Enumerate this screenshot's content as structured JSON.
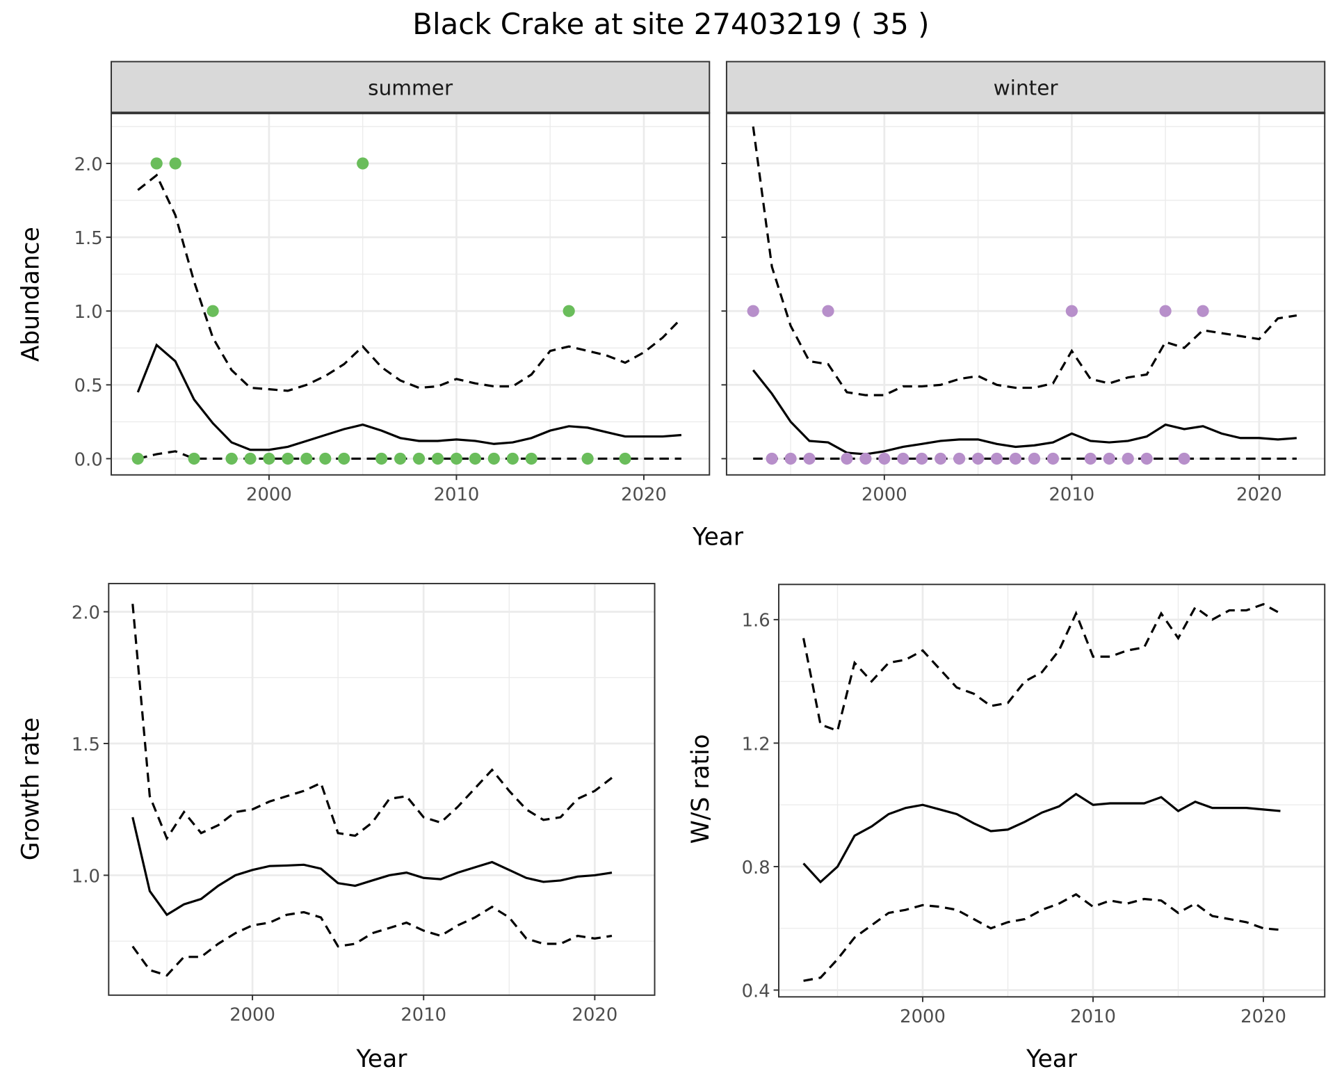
{
  "title": "Black Crake at site 27403219 ( 35 )",
  "colors": {
    "summer": "#6abd5b",
    "winter": "#b78fca",
    "line": "#000000",
    "strip_bg": "#d9d9d9",
    "grid": "#ebebeb"
  },
  "chart_data": [
    {
      "type": "line",
      "panel": "summer",
      "strip_label": "summer",
      "xlabel": "Year",
      "ylabel": "Abundance",
      "xlim": [
        1991.58,
        2023.5
      ],
      "ylim": [
        -0.11,
        2.342
      ],
      "xticks": [
        2000,
        2010,
        2020
      ],
      "xtick_labels": [
        "2000",
        "2010",
        "2020"
      ],
      "yticks": [
        0,
        0.5,
        1,
        1.5,
        2
      ],
      "ytick_labels": [
        "0.0",
        "0.5",
        "1.0",
        "1.5",
        "2.0"
      ],
      "x": [
        1993,
        1994,
        1995,
        1996,
        1997,
        1998,
        1999,
        2000,
        2001,
        2002,
        2003,
        2004,
        2005,
        2006,
        2007,
        2008,
        2009,
        2010,
        2011,
        2012,
        2013,
        2014,
        2015,
        2016,
        2017,
        2018,
        2019,
        2020,
        2021,
        2022
      ],
      "series": [
        {
          "name": "mean",
          "style": "solid",
          "values": [
            0.45,
            0.77,
            0.66,
            0.4,
            0.24,
            0.11,
            0.06,
            0.06,
            0.08,
            0.12,
            0.16,
            0.2,
            0.23,
            0.19,
            0.14,
            0.12,
            0.12,
            0.13,
            0.12,
            0.1,
            0.11,
            0.14,
            0.19,
            0.22,
            0.21,
            0.18,
            0.15,
            0.15,
            0.15,
            0.16
          ]
        },
        {
          "name": "upper",
          "style": "dashed",
          "values": [
            1.82,
            1.92,
            1.65,
            1.2,
            0.82,
            0.6,
            0.48,
            0.47,
            0.46,
            0.5,
            0.56,
            0.64,
            0.76,
            0.62,
            0.53,
            0.48,
            0.49,
            0.54,
            0.51,
            0.49,
            0.49,
            0.57,
            0.73,
            0.76,
            0.73,
            0.7,
            0.65,
            0.72,
            0.82,
            0.95
          ]
        },
        {
          "name": "lower",
          "style": "dashed",
          "values": [
            0,
            0.03,
            0.05,
            0,
            0,
            0,
            0,
            0,
            0,
            0,
            0,
            0,
            0,
            0,
            0,
            0,
            0,
            0,
            0,
            0,
            0,
            0,
            0,
            0,
            0,
            0,
            0,
            0,
            0,
            0
          ]
        }
      ],
      "points": {
        "x": [
          1993,
          1994,
          1995,
          1996,
          1997,
          1998,
          1999,
          2000,
          2001,
          2002,
          2003,
          2004,
          2005,
          2006,
          2007,
          2008,
          2009,
          2010,
          2011,
          2012,
          2013,
          2014,
          2016,
          2017,
          2019
        ],
        "y": [
          0,
          2,
          2,
          0,
          1,
          0,
          0,
          0,
          0,
          0,
          0,
          0,
          2,
          0,
          0,
          0,
          0,
          0,
          0,
          0,
          0,
          0,
          1,
          0,
          0
        ]
      }
    },
    {
      "type": "line",
      "panel": "winter",
      "strip_label": "winter",
      "xlabel": "Year",
      "ylabel": "",
      "xlim": [
        1991.58,
        2023.5
      ],
      "ylim": [
        -0.11,
        2.342
      ],
      "xticks": [
        2000,
        2010,
        2020
      ],
      "xtick_labels": [
        "2000",
        "2010",
        "2020"
      ],
      "yticks": [
        0,
        0.5,
        1,
        1.5,
        2
      ],
      "ytick_labels": [],
      "x": [
        1993,
        1994,
        1995,
        1996,
        1997,
        1998,
        1999,
        2000,
        2001,
        2002,
        2003,
        2004,
        2005,
        2006,
        2007,
        2008,
        2009,
        2010,
        2011,
        2012,
        2013,
        2014,
        2015,
        2016,
        2017,
        2018,
        2019,
        2020,
        2021,
        2022
      ],
      "series": [
        {
          "name": "mean",
          "style": "solid",
          "values": [
            0.6,
            0.44,
            0.25,
            0.12,
            0.11,
            0.04,
            0.03,
            0.05,
            0.08,
            0.1,
            0.12,
            0.13,
            0.13,
            0.1,
            0.08,
            0.09,
            0.11,
            0.17,
            0.12,
            0.11,
            0.12,
            0.15,
            0.23,
            0.2,
            0.22,
            0.17,
            0.14,
            0.14,
            0.13,
            0.14
          ]
        },
        {
          "name": "upper",
          "style": "dashed",
          "values": [
            2.25,
            1.3,
            0.9,
            0.66,
            0.64,
            0.45,
            0.43,
            0.43,
            0.49,
            0.49,
            0.5,
            0.54,
            0.56,
            0.5,
            0.48,
            0.48,
            0.51,
            0.73,
            0.54,
            0.51,
            0.55,
            0.57,
            0.79,
            0.75,
            0.87,
            0.85,
            0.83,
            0.81,
            0.95,
            0.97
          ]
        },
        {
          "name": "lower",
          "style": "dashed",
          "values": [
            0,
            0,
            0,
            0,
            0,
            0,
            0,
            0,
            0,
            0,
            0,
            0,
            0,
            0,
            0,
            0,
            0,
            0,
            0,
            0,
            0,
            0,
            0,
            0,
            0,
            0,
            0,
            0,
            0,
            0
          ]
        }
      ],
      "points": {
        "x": [
          1993,
          1994,
          1995,
          1996,
          1997,
          1998,
          1999,
          2000,
          2001,
          2002,
          2003,
          2004,
          2005,
          2006,
          2007,
          2008,
          2009,
          2010,
          2011,
          2012,
          2013,
          2014,
          2015,
          2016,
          2017
        ],
        "y": [
          1,
          0,
          0,
          0,
          1,
          0,
          0,
          0,
          0,
          0,
          0,
          0,
          0,
          0,
          0,
          0,
          0,
          1,
          0,
          0,
          0,
          0,
          1,
          0,
          1
        ]
      }
    },
    {
      "type": "line",
      "panel": "growth",
      "xlabel": "Year",
      "ylabel": "Growth rate",
      "xlim": [
        1991.6,
        2023.5
      ],
      "ylim": [
        0.545,
        2.107
      ],
      "xticks": [
        2000,
        2010,
        2020
      ],
      "xtick_labels": [
        "2000",
        "2010",
        "2020"
      ],
      "yticks": [
        1.0,
        1.5,
        2.0
      ],
      "ytick_labels": [
        "1.0",
        "1.5",
        "2.0"
      ],
      "x": [
        1993,
        1994,
        1995,
        1996,
        1997,
        1998,
        1999,
        2000,
        2001,
        2002,
        2003,
        2004,
        2005,
        2006,
        2007,
        2008,
        2009,
        2010,
        2011,
        2012,
        2013,
        2014,
        2015,
        2016,
        2017,
        2018,
        2019,
        2020,
        2021
      ],
      "series": [
        {
          "name": "mean",
          "style": "solid",
          "values": [
            1.22,
            0.94,
            0.85,
            0.89,
            0.91,
            0.96,
            1.0,
            1.02,
            1.035,
            1.037,
            1.04,
            1.025,
            0.97,
            0.96,
            0.98,
            1.0,
            1.01,
            0.99,
            0.985,
            1.01,
            1.03,
            1.05,
            1.02,
            0.99,
            0.975,
            0.98,
            0.995,
            1.0,
            1.01
          ]
        },
        {
          "name": "upper",
          "style": "dashed",
          "values": [
            2.03,
            1.3,
            1.14,
            1.24,
            1.16,
            1.19,
            1.24,
            1.25,
            1.28,
            1.3,
            1.32,
            1.35,
            1.16,
            1.15,
            1.2,
            1.29,
            1.3,
            1.22,
            1.2,
            1.26,
            1.33,
            1.4,
            1.32,
            1.25,
            1.21,
            1.22,
            1.29,
            1.32,
            1.37
          ]
        },
        {
          "name": "lower",
          "style": "dashed",
          "values": [
            0.73,
            0.64,
            0.62,
            0.69,
            0.69,
            0.74,
            0.78,
            0.81,
            0.82,
            0.85,
            0.86,
            0.84,
            0.73,
            0.74,
            0.78,
            0.8,
            0.82,
            0.79,
            0.77,
            0.81,
            0.84,
            0.88,
            0.84,
            0.76,
            0.74,
            0.74,
            0.77,
            0.76,
            0.77
          ]
        }
      ]
    },
    {
      "type": "line",
      "panel": "ws_ratio",
      "xlabel": "Year",
      "ylabel": "W/S ratio",
      "xlim": [
        1991.55,
        2023.6
      ],
      "ylim": [
        0.378,
        1.714
      ],
      "xticks": [
        2000,
        2010,
        2020
      ],
      "xtick_labels": [
        "2000",
        "2010",
        "2020"
      ],
      "yticks": [
        0.4,
        0.8,
        1.2,
        1.6
      ],
      "ytick_labels": [
        "0.4",
        "0.8",
        "1.2",
        "1.6"
      ],
      "x": [
        1993,
        1994,
        1995,
        1996,
        1997,
        1998,
        1999,
        2000,
        2001,
        2002,
        2003,
        2004,
        2005,
        2006,
        2007,
        2008,
        2009,
        2010,
        2011,
        2012,
        2013,
        2014,
        2015,
        2016,
        2017,
        2018,
        2019,
        2020,
        2021
      ],
      "series": [
        {
          "name": "mean",
          "style": "solid",
          "values": [
            0.81,
            0.75,
            0.8,
            0.9,
            0.93,
            0.97,
            0.99,
            1.0,
            0.985,
            0.97,
            0.94,
            0.915,
            0.92,
            0.945,
            0.975,
            0.995,
            1.035,
            1.0,
            1.005,
            1.005,
            1.005,
            1.025,
            0.98,
            1.01,
            0.99,
            0.99,
            0.99,
            0.985,
            0.98
          ]
        },
        {
          "name": "upper",
          "style": "dashed",
          "values": [
            1.54,
            1.26,
            1.24,
            1.46,
            1.4,
            1.46,
            1.47,
            1.5,
            1.44,
            1.38,
            1.36,
            1.32,
            1.33,
            1.4,
            1.43,
            1.5,
            1.62,
            1.48,
            1.48,
            1.5,
            1.51,
            1.62,
            1.54,
            1.64,
            1.6,
            1.63,
            1.63,
            1.65,
            1.62
          ]
        },
        {
          "name": "lower",
          "style": "dashed",
          "values": [
            0.43,
            0.44,
            0.5,
            0.57,
            0.61,
            0.65,
            0.66,
            0.675,
            0.67,
            0.66,
            0.63,
            0.6,
            0.62,
            0.63,
            0.66,
            0.68,
            0.71,
            0.67,
            0.69,
            0.68,
            0.695,
            0.69,
            0.65,
            0.68,
            0.64,
            0.63,
            0.62,
            0.6,
            0.595
          ]
        }
      ]
    }
  ]
}
